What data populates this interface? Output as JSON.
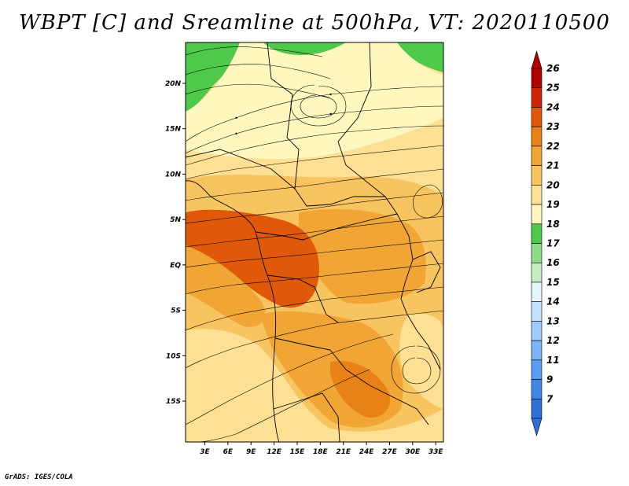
{
  "title": "WBPT [C] and Sreamline at 500hPa, VT: 2020110500",
  "credit": "GrADS: IGES/COLA",
  "chart_data": {
    "type": "heatmap",
    "variable": "WBPT [C]",
    "overlay": "streamlines",
    "level": "500hPa",
    "valid_time": "2020110500",
    "x_ticks": [
      "3E",
      "6E",
      "9E",
      "12E",
      "15E",
      "18E",
      "21E",
      "24E",
      "27E",
      "30E",
      "33E"
    ],
    "y_ticks": [
      "20N",
      "15N",
      "10N",
      "5N",
      "EQ",
      "5S",
      "10S",
      "15S"
    ],
    "x_values": [
      3,
      6,
      9,
      12,
      15,
      18,
      21,
      24,
      27,
      30,
      33
    ],
    "y_values": [
      20,
      15,
      10,
      5,
      0,
      -5,
      -10,
      -15
    ],
    "xlim": [
      0.5,
      34
    ],
    "ylim": [
      -19.5,
      24.5
    ],
    "grid": false,
    "colorbar": {
      "orientation": "vertical",
      "placement": "right",
      "levels": [
        "7",
        "9",
        "11",
        "12",
        "13",
        "14",
        "15",
        "16",
        "17",
        "18",
        "19",
        "20",
        "21",
        "22",
        "23",
        "24",
        "25",
        "26"
      ],
      "colors": [
        "#2f6fd6",
        "#3f86e6",
        "#5a9cf2",
        "#7bb3f7",
        "#a1cbfb",
        "#c6e0fb",
        "#e6f4fb",
        "#c3edc0",
        "#8fdc88",
        "#4ec94a",
        "#fff7bd",
        "#fde093",
        "#f8c460",
        "#f0a535",
        "#e98216",
        "#e0590a",
        "#cf2406",
        "#b20000"
      ]
    },
    "color_regions": [
      {
        "name": "north-green-west",
        "value": 17
      },
      {
        "name": "north-green-top",
        "value": 17
      },
      {
        "name": "north-green-east",
        "value": 17
      },
      {
        "name": "central-belt",
        "value": 21
      },
      {
        "name": "core-congo",
        "value": 23
      },
      {
        "name": "east-orange",
        "value": 21
      },
      {
        "name": "south-orange",
        "value": 21
      },
      {
        "name": "south-core",
        "value": 22
      }
    ]
  }
}
